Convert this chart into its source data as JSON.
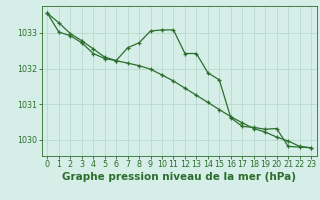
{
  "background_color": "#d5eee8",
  "plot_bg_color": "#d5eee8",
  "grid_color": "#b8d8ce",
  "line_color": "#2d6e2d",
  "marker_color": "#2d6e2d",
  "xlabel": "Graphe pression niveau de la mer (hPa)",
  "xlim": [
    -0.5,
    23.5
  ],
  "ylim": [
    1029.55,
    1033.75
  ],
  "yticks": [
    1030,
    1031,
    1032,
    1033
  ],
  "xticks": [
    0,
    1,
    2,
    3,
    4,
    5,
    6,
    7,
    8,
    9,
    10,
    11,
    12,
    13,
    14,
    15,
    16,
    17,
    18,
    19,
    20,
    21,
    22,
    23
  ],
  "series1_x": [
    0,
    1,
    2,
    3,
    4,
    5,
    6,
    7,
    8,
    9,
    10,
    11,
    12,
    13,
    14,
    15,
    16,
    17,
    18,
    19,
    20,
    21,
    22,
    23
  ],
  "series1_y": [
    1033.55,
    1033.28,
    1032.98,
    1032.78,
    1032.55,
    1032.32,
    1032.22,
    1032.15,
    1032.08,
    1031.98,
    1031.82,
    1031.65,
    1031.45,
    1031.25,
    1031.05,
    1030.85,
    1030.65,
    1030.48,
    1030.32,
    1030.22,
    1030.08,
    1029.97,
    1029.82,
    1029.78
  ],
  "series2_x": [
    0,
    1,
    2,
    3,
    4,
    5,
    6,
    7,
    8,
    9,
    10,
    11,
    12,
    13,
    14,
    15,
    16,
    17,
    18,
    19,
    20,
    21,
    22,
    23
  ],
  "series2_y": [
    1033.55,
    1033.02,
    1032.92,
    1032.72,
    1032.42,
    1032.28,
    1032.22,
    1032.58,
    1032.72,
    1033.05,
    1033.08,
    1033.08,
    1032.42,
    1032.42,
    1031.88,
    1031.68,
    1030.62,
    1030.38,
    1030.35,
    1030.3,
    1030.32,
    1029.82,
    1029.8,
    1029.78
  ],
  "title_fontsize": 7.5,
  "tick_fontsize": 5.8,
  "title_color": "#2d6e2d",
  "linewidth": 0.9,
  "markersize": 3.5
}
